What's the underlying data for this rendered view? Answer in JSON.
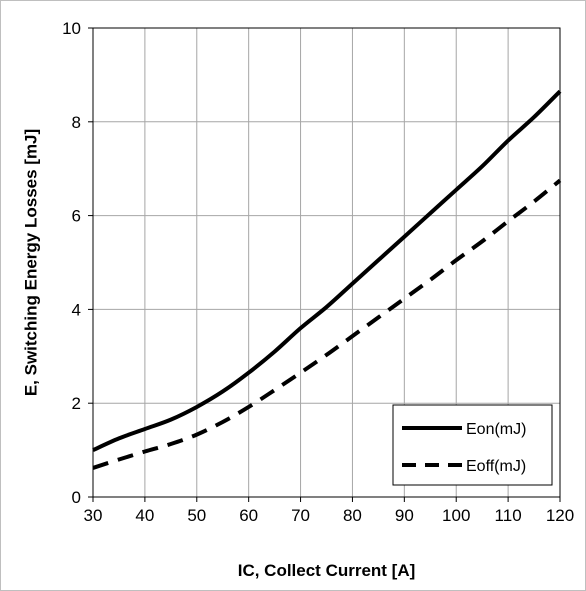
{
  "chart_data": {
    "type": "line",
    "xlabel": "IC, Collect Current [A]",
    "ylabel": "E, Switching Energy Losses [mJ]",
    "xlim": [
      30,
      120
    ],
    "ylim": [
      0,
      10
    ],
    "xticks": [
      30,
      40,
      50,
      60,
      70,
      80,
      90,
      100,
      110,
      120
    ],
    "yticks": [
      0,
      2,
      4,
      6,
      8,
      10
    ],
    "grid": true,
    "legend_position": "bottom-right",
    "series": [
      {
        "name": "Eon(mJ)",
        "style": "solid",
        "color": "#000000",
        "x": [
          30,
          35,
          40,
          45,
          50,
          55,
          60,
          65,
          70,
          75,
          80,
          85,
          90,
          95,
          100,
          105,
          110,
          115,
          120
        ],
        "y": [
          1.0,
          1.25,
          1.45,
          1.65,
          1.92,
          2.25,
          2.65,
          3.1,
          3.6,
          4.05,
          4.55,
          5.05,
          5.55,
          6.05,
          6.55,
          7.05,
          7.6,
          8.1,
          8.65
        ]
      },
      {
        "name": "Eoff(mJ)",
        "style": "dashed",
        "color": "#000000",
        "x": [
          30,
          35,
          40,
          45,
          50,
          55,
          60,
          65,
          70,
          75,
          80,
          85,
          90,
          95,
          100,
          105,
          110,
          115,
          120
        ],
        "y": [
          0.62,
          0.8,
          0.97,
          1.13,
          1.33,
          1.6,
          1.92,
          2.28,
          2.65,
          3.03,
          3.43,
          3.83,
          4.23,
          4.63,
          5.05,
          5.45,
          5.88,
          6.3,
          6.75
        ]
      }
    ]
  }
}
